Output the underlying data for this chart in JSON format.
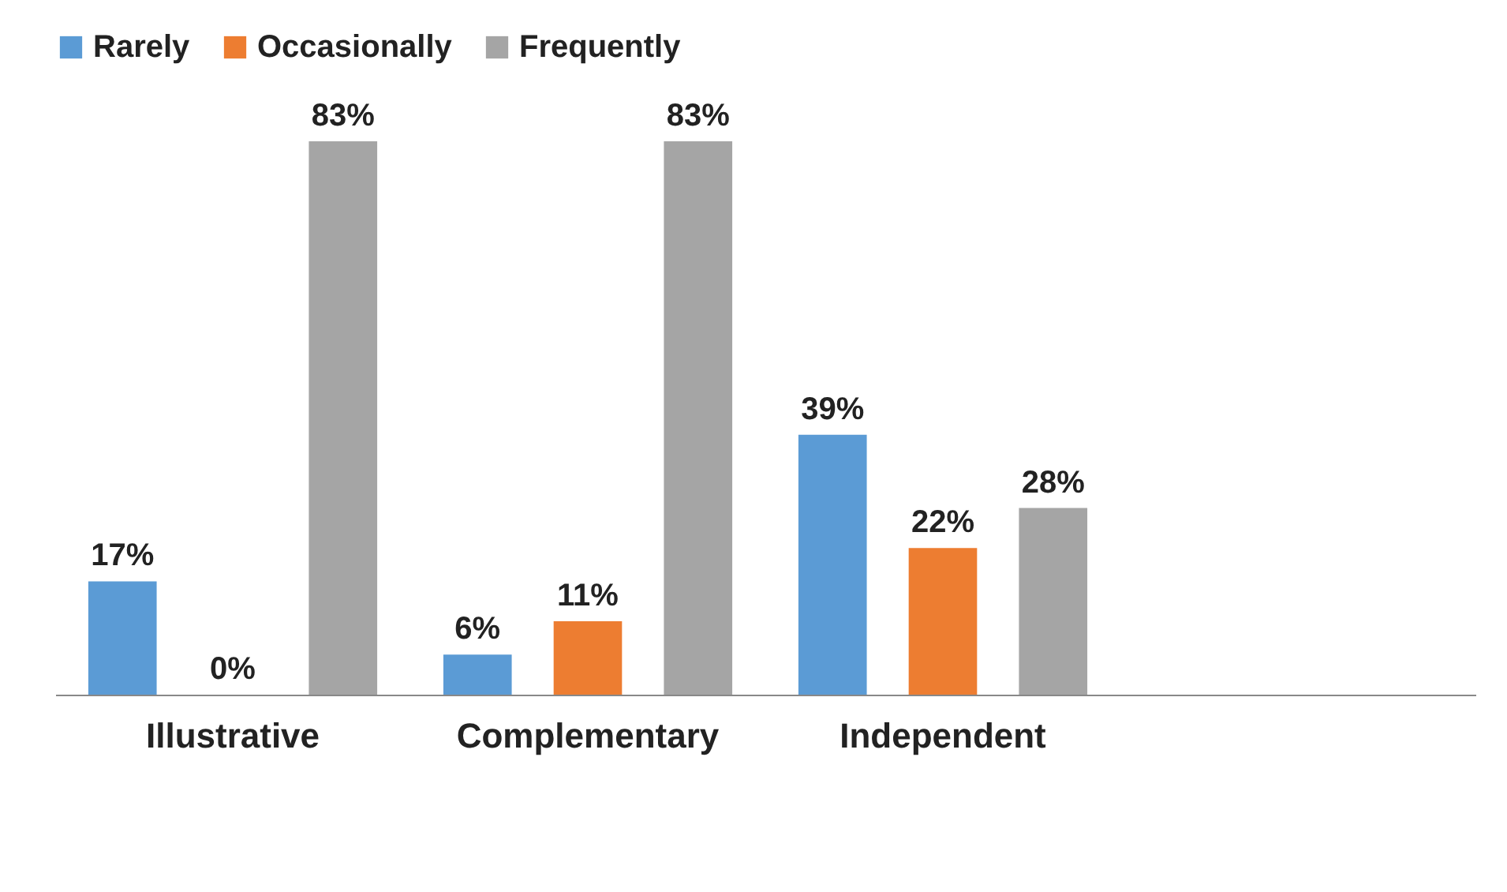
{
  "chart_data": {
    "type": "bar",
    "categories": [
      "Illustrative",
      "Complementary",
      "Independent",
      null
    ],
    "series": [
      {
        "name": "Rarely",
        "color": "#5b9bd5",
        "values": [
          17,
          6,
          39,
          null
        ],
        "value_labels": [
          "17%",
          "6%",
          "39%",
          null
        ]
      },
      {
        "name": "Occasionally",
        "color": "#ed7d31",
        "values": [
          0,
          11,
          22,
          null
        ],
        "value_labels": [
          "0%",
          "11%",
          "22%",
          null
        ]
      },
      {
        "name": "Frequently",
        "color": "#a5a5a5",
        "values": [
          83,
          83,
          28,
          null
        ],
        "value_labels": [
          "83%",
          "83%",
          "28%",
          null
        ]
      }
    ],
    "legend": "top"
  }
}
